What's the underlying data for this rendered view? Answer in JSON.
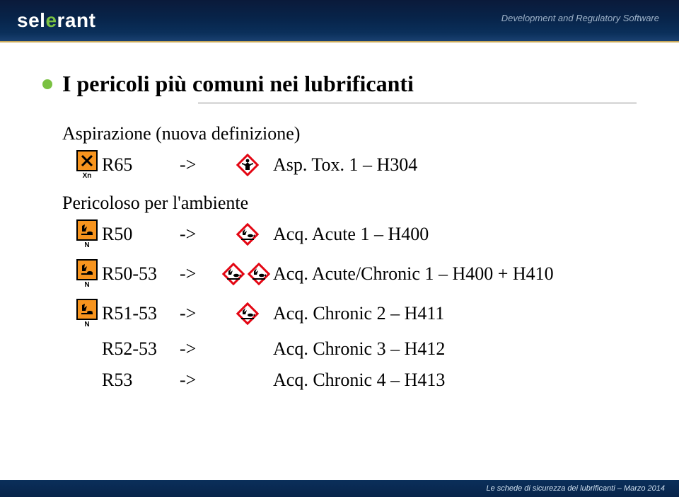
{
  "header": {
    "logo_prefix": "sel",
    "logo_accent": "e",
    "logo_suffix": "rant",
    "tagline": "Development and Regulatory Software"
  },
  "title": "I pericoli più comuni nei lubrificanti",
  "section1": {
    "label": "Aspirazione (nuova definizione)"
  },
  "section2": {
    "label": "Pericoloso per l'ambiente"
  },
  "rows": [
    {
      "rcode": "R65",
      "arrow": "->",
      "label": "Asp. Tox. 1 – H304",
      "old_letter": "Xn",
      "old_icon": "x",
      "ghs": [
        "health"
      ]
    },
    {
      "rcode": "R50",
      "arrow": "->",
      "label": "Acq. Acute 1 – H400",
      "old_letter": "N",
      "old_icon": "env",
      "ghs": [
        "env"
      ]
    },
    {
      "rcode": "R50-53",
      "arrow": "->",
      "label": "Acq. Acute/Chronic 1 – H400 + H410",
      "old_letter": "N",
      "old_icon": "env",
      "ghs": [
        "env",
        "env"
      ]
    },
    {
      "rcode": "R51-53",
      "arrow": "->",
      "label": "Acq. Chronic 2 – H411",
      "old_letter": "N",
      "old_icon": "env",
      "ghs": [
        "env"
      ]
    },
    {
      "rcode": "R52-53",
      "arrow": "->",
      "label": "Acq. Chronic 3 – H412",
      "old_letter": "",
      "old_icon": "",
      "ghs": []
    },
    {
      "rcode": "R53",
      "arrow": "->",
      "label": "Acq. Chronic 4 – H413",
      "old_letter": "",
      "old_icon": "",
      "ghs": []
    }
  ],
  "footer": "Le schede di sicurezza dei lubrificanti – Marzo 2014",
  "colors": {
    "header_grad_top": "#0a1a3a",
    "header_grad_bottom": "#1a4070",
    "gold_rule": "#c9a959",
    "bullet": "#7ac142",
    "old_picto_bg": "#f7941e",
    "ghs_border": "#e30613",
    "ghs_fill": "#ffffff"
  }
}
